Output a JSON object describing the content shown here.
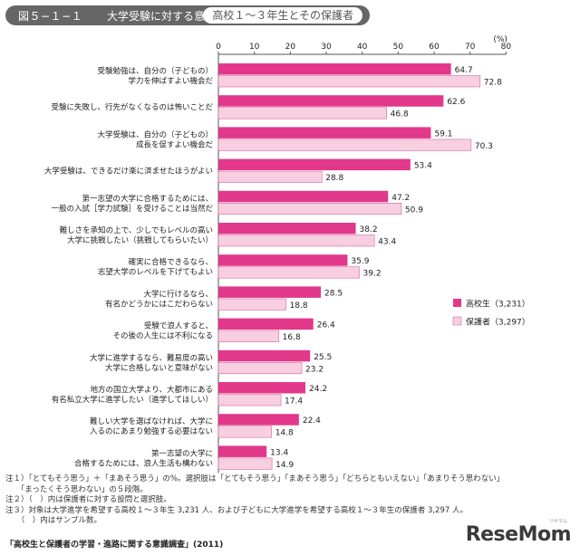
{
  "header": {
    "figure_no": "図５−１−１",
    "title": "大学受験に対する意識",
    "subtitle": "高校１～３年生とその保護者"
  },
  "chart_data": {
    "type": "bar",
    "orientation": "horizontal",
    "unit": "(%)",
    "xlim": [
      0,
      80
    ],
    "ticks": [
      0,
      10,
      20,
      30,
      40,
      50,
      60,
      70,
      80
    ],
    "grid": false,
    "legend_position": "right",
    "categories": [
      [
        "受験勉強は、自分の（子どもの）",
        "学力を伸ばすよい機会だ"
      ],
      [
        "受験に失敗し、行先がなくなるのは怖いことだ"
      ],
      [
        "大学受験は、自分の（子どもの）",
        "成長を促すよい機会だ"
      ],
      [
        "大学受験は、できるだけ楽に済ませたほうがよい"
      ],
      [
        "第一志望の大学に合格するためには、",
        "一般の入試［学力試験］を受けることは当然だ"
      ],
      [
        "難しさを承知の上で、少しでもレベルの高い",
        "大学に挑戦したい（挑戦してもらいたい）"
      ],
      [
        "確実に合格できるなら、",
        "志望大学のレベルを下げてもよい"
      ],
      [
        "大学に行けるなら、",
        "有名かどうかにはこだわらない"
      ],
      [
        "受験で浪人すると、",
        "その後の人生には不利になる"
      ],
      [
        "大学に進学するなら、難易度の高い",
        "大学に合格しないと意味がない"
      ],
      [
        "地方の国立大学より、大都市にある",
        "有名私立大学に進学したい（進学してほしい）"
      ],
      [
        "難しい大学を選ばなければ、大学に",
        "入るのにあまり勉強する必要はない"
      ],
      [
        "第一志望の大学に",
        "合格するためには、浪人生活も構わない"
      ]
    ],
    "series": [
      {
        "name": "高校生（3,231）",
        "color": "#e2388b",
        "values": [
          64.7,
          62.6,
          59.1,
          53.4,
          47.2,
          38.2,
          35.9,
          28.5,
          26.4,
          25.5,
          24.2,
          22.4,
          13.4
        ]
      },
      {
        "name": "保護者（3,297）",
        "color": "#f7cfe0",
        "values": [
          72.8,
          46.8,
          70.3,
          28.8,
          50.9,
          43.4,
          39.2,
          18.8,
          16.8,
          23.2,
          17.4,
          14.8,
          14.9
        ]
      }
    ]
  },
  "notes": [
    "注１）「とてもそう思う」＋「まあそう思う」の%。選択肢は「とてもそう思う」「まあそう思う」「どちらともいえない」「あまりそう思わない」",
    "　　「まったくそう思わない」の５段階。",
    "注２）（　）内は保護者に対する設問と選択肢。",
    "注３）対象は大学進学を希望する高校１～３年生 3,231 人、および子どもに大学進学を希望する高校１～３年生の保護者 3,297 人。",
    "　　（　）内はサンプル数。"
  ],
  "source": "「高校生と保護者の学習・進路に関する意識調査」(2011)",
  "brand": {
    "name": "ReseMom",
    "small": "リセマム"
  }
}
